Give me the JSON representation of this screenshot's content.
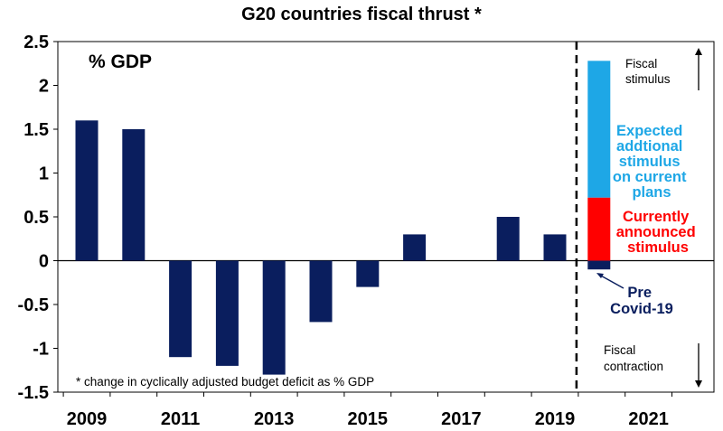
{
  "chart_data": {
    "type": "bar",
    "title": "G20 countries fiscal thrust *",
    "unit_label": "% GDP",
    "footnote": "* change in cyclically adjusted budget deficit as % GDP",
    "ylim": [
      -1.5,
      2.5
    ],
    "y_ticks": [
      "2.5",
      "2",
      "1.5",
      "1",
      "0.5",
      "0",
      "-0.5",
      "-1",
      "-1.5"
    ],
    "x_tick_labels": [
      "2009",
      "2011",
      "2013",
      "2015",
      "2017",
      "2019",
      "2021"
    ],
    "categories": [
      "2009",
      "2010",
      "2011",
      "2012",
      "2013",
      "2014",
      "2015",
      "2016",
      "2017",
      "2018",
      "2019"
    ],
    "values": [
      1.6,
      1.5,
      -1.1,
      -1.2,
      -1.3,
      -0.7,
      -0.3,
      0.3,
      0,
      0.5,
      0.3
    ],
    "colors": {
      "historical": "#0a1e5e",
      "announced": "#ff0000",
      "expected": "#1ea7e6",
      "divider": "#000000"
    },
    "stacked_2020": [
      {
        "name": "Pre Covid-19",
        "value": -0.1,
        "color": "#0a1e5e"
      },
      {
        "name": "Currently announced stimulus",
        "value": 0.72,
        "color": "#ff0000"
      },
      {
        "name": "Expected addtional stimulus on current plans",
        "value": 1.56,
        "color": "#1ea7e6"
      }
    ],
    "annotations": {
      "expected": [
        "Expected",
        "addtional",
        "stimulus",
        "on current",
        "plans"
      ],
      "announced": [
        "Currently",
        "announced",
        "stimulus"
      ],
      "pre_covid": [
        "Pre",
        "Covid-19"
      ],
      "stimulus_label": [
        "Fiscal",
        "stimulus"
      ],
      "contraction_label": [
        "Fiscal",
        "contraction"
      ]
    }
  }
}
